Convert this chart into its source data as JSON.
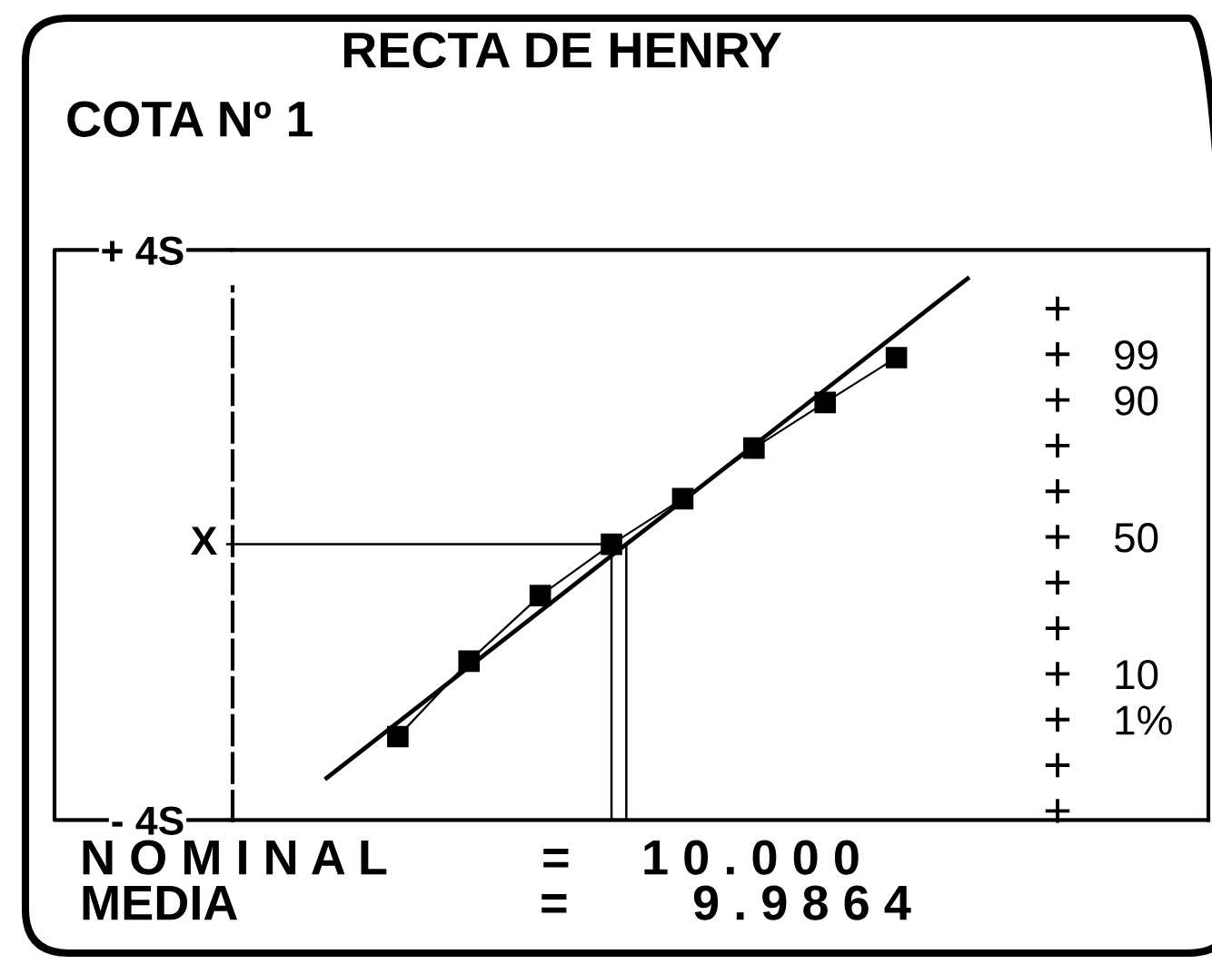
{
  "chart_data": {
    "type": "line",
    "title": "RECTA DE HENRY",
    "subtitle": "COTA Nº 1",
    "categories": [
      null,
      null,
      null,
      null,
      null,
      null,
      null,
      null,
      null,
      null
    ],
    "series": [
      {
        "color": "#000000",
        "marker": "square",
        "values": [
          null,
          -2.83,
          -1.77,
          -0.85,
          -0.13,
          0.51,
          1.22,
          1.86,
          2.49,
          null
        ]
      },
      {
        "color": "#000000",
        "marker": "none",
        "values": [
          -3.41,
          -2.63,
          -1.85,
          -1.07,
          -0.29,
          0.48,
          1.26,
          2.04,
          2.82,
          3.6
        ]
      }
    ],
    "ylim": [
      -4,
      4
    ],
    "yticks": [
      {
        "value": 4,
        "label": "+ 4S"
      },
      {
        "value": -4,
        "label": "- 4S"
      }
    ],
    "y2_categories": [
      null,
      "99",
      "90",
      null,
      null,
      "50",
      null,
      null,
      "10",
      "1%",
      null,
      null
    ],
    "ref_lines": [
      {
        "axis": "y",
        "value": -0.13,
        "label": "X",
        "color": "#000000"
      }
    ],
    "annotations": [
      "N O M I N A L",
      "=",
      "1 0 . 0 0 0",
      "MEDIA",
      "=",
      "9 . 9 8 6 4"
    ]
  }
}
